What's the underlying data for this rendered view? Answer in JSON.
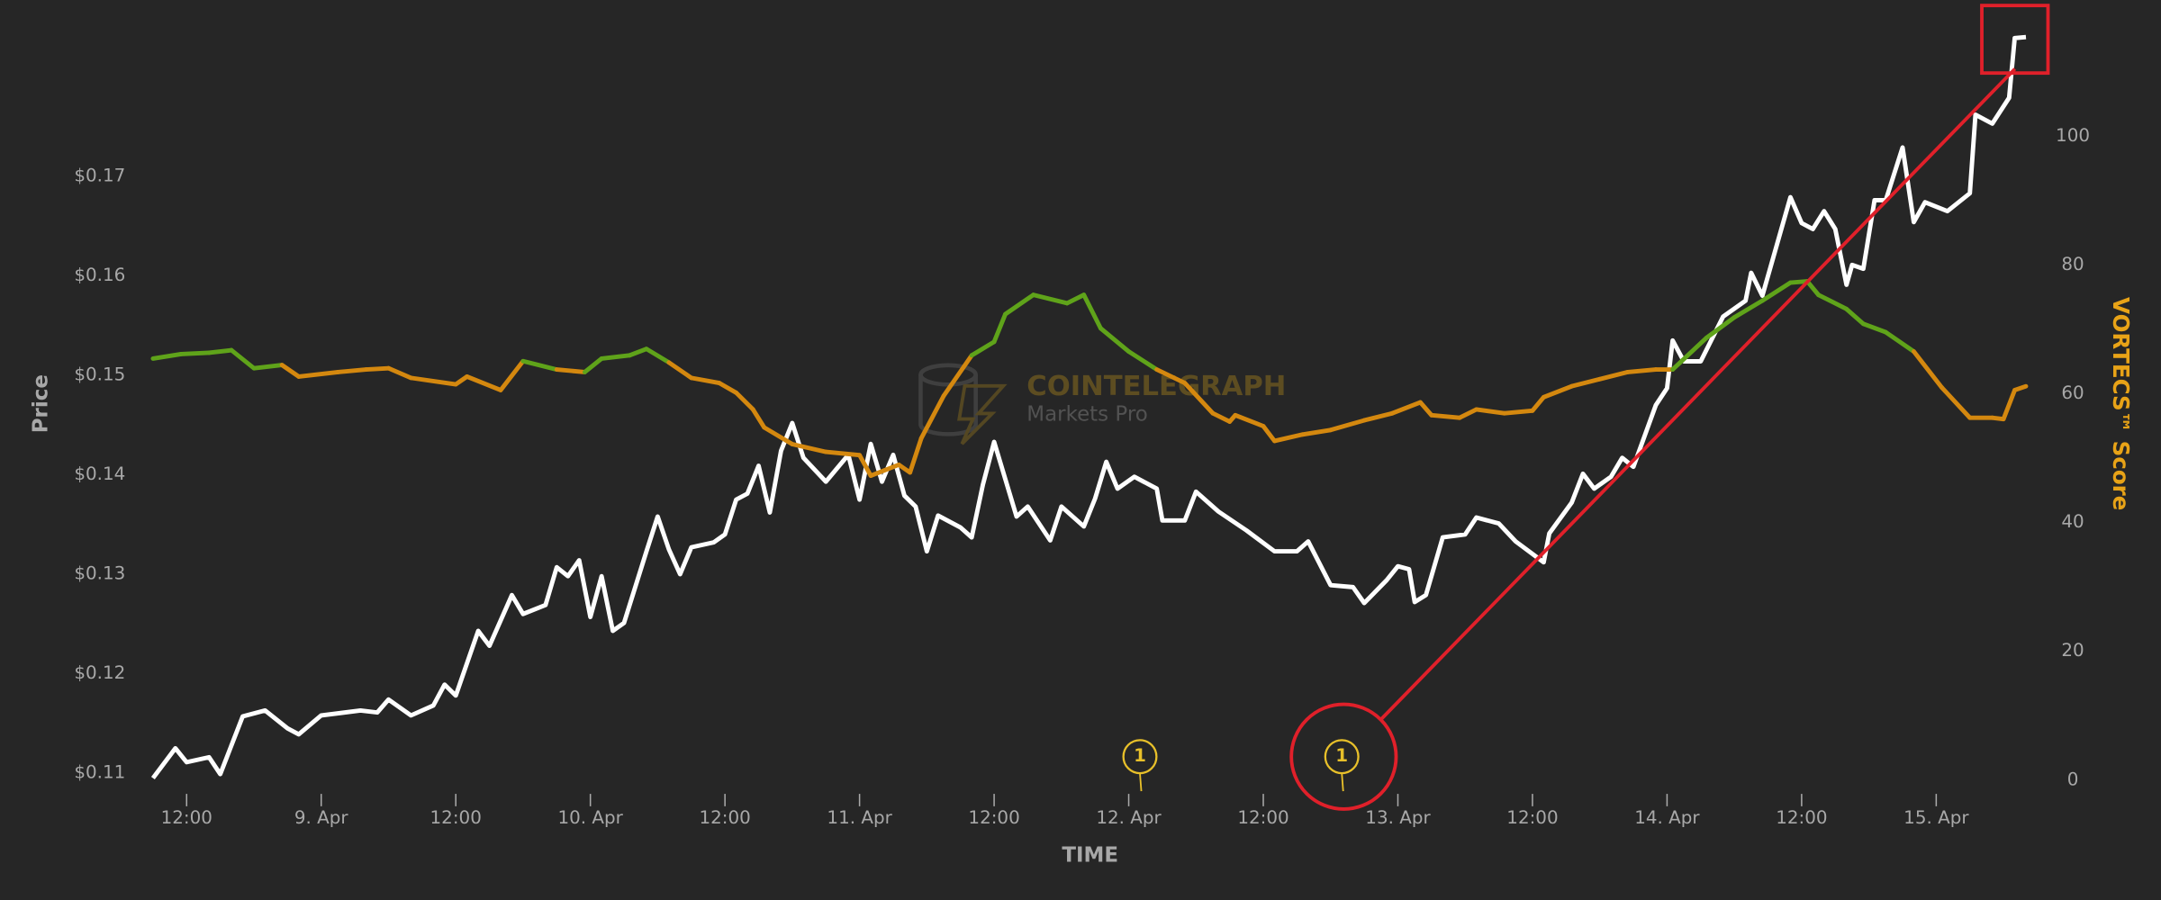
{
  "chart_data": {
    "type": "line",
    "x_label": "TIME",
    "y_label": "Price",
    "y2_label": "VORTECS™ Score",
    "xlim": [
      9,
      176
    ],
    "xticks": [
      {
        "value": 12,
        "label": "12:00"
      },
      {
        "value": 24,
        "label": "9. Apr"
      },
      {
        "value": 36,
        "label": "12:00"
      },
      {
        "value": 48,
        "label": "10. Apr"
      },
      {
        "value": 60,
        "label": "12:00"
      },
      {
        "value": 72,
        "label": "11. Apr"
      },
      {
        "value": 84,
        "label": "12:00"
      },
      {
        "value": 96,
        "label": "12. Apr"
      },
      {
        "value": 108,
        "label": "12:00"
      },
      {
        "value": 120,
        "label": "13. Apr"
      },
      {
        "value": 132,
        "label": "12:00"
      },
      {
        "value": 144,
        "label": "14. Apr"
      },
      {
        "value": 156,
        "label": "12:00"
      },
      {
        "value": 168,
        "label": "15. Apr"
      }
    ],
    "ylim": [
      0.1093,
      0.185
    ],
    "yticks": [
      {
        "value": 0.11,
        "label": "$0.11"
      },
      {
        "value": 0.12,
        "label": "$0.12"
      },
      {
        "value": 0.13,
        "label": "$0.13"
      },
      {
        "value": 0.14,
        "label": "$0.14"
      },
      {
        "value": 0.15,
        "label": "$0.15"
      },
      {
        "value": 0.16,
        "label": "$0.16"
      },
      {
        "value": 0.17,
        "label": "$0.17"
      }
    ],
    "y2lim": [
      0,
      117
    ],
    "y2ticks": [
      0,
      20,
      40,
      60,
      80,
      100
    ],
    "series": [
      {
        "color": "#ffffff",
        "x": [
          9,
          11,
          12,
          14,
          15,
          17,
          19,
          21,
          22,
          24,
          27.5,
          29,
          30,
          32,
          34,
          35,
          36,
          38,
          39,
          41,
          42,
          44,
          45,
          46,
          47,
          48,
          49,
          50,
          51,
          53,
          54,
          55,
          56,
          57,
          59,
          60,
          61,
          62,
          63,
          64,
          65,
          66,
          67,
          69,
          71,
          72,
          73,
          74,
          75,
          76,
          77,
          78,
          79,
          81,
          82,
          83,
          84,
          86,
          87,
          89,
          90,
          92,
          93,
          94,
          95,
          96.5,
          98.5,
          99,
          101,
          102,
          104,
          106.5,
          109,
          111,
          112,
          114,
          116,
          117,
          119,
          120,
          121,
          121.5,
          122.5,
          124,
          126,
          127,
          129,
          130.5,
          133,
          133.5,
          135.5,
          136.5,
          137.5,
          139,
          140,
          141,
          143,
          144,
          144.5,
          145.5,
          147,
          149,
          151,
          151.5,
          152.5,
          155,
          156,
          157,
          158,
          159,
          160,
          160.5,
          161.5,
          162.5,
          163.5,
          165,
          166,
          167,
          169,
          171,
          171.5,
          173,
          174.5,
          175,
          176
        ],
        "values": [
          0.1095,
          0.1125,
          0.1111,
          0.1116,
          0.1099,
          0.1157,
          0.1163,
          0.1145,
          0.1139,
          0.1158,
          0.1163,
          0.1161,
          0.1174,
          0.1158,
          0.1168,
          0.1189,
          0.1178,
          0.1243,
          0.1228,
          0.1279,
          0.126,
          0.1269,
          0.1307,
          0.1298,
          0.1314,
          0.1257,
          0.1298,
          0.1243,
          0.1251,
          0.1323,
          0.1358,
          0.1325,
          0.13,
          0.1327,
          0.1332,
          0.134,
          0.1375,
          0.1381,
          0.1409,
          0.1362,
          0.1424,
          0.1452,
          0.1417,
          0.1393,
          0.142,
          0.1375,
          0.1431,
          0.1393,
          0.142,
          0.1379,
          0.1368,
          0.1323,
          0.1359,
          0.1347,
          0.1337,
          0.139,
          0.1433,
          0.1358,
          0.1368,
          0.1334,
          0.1368,
          0.1348,
          0.1376,
          0.1413,
          0.1386,
          0.1398,
          0.1386,
          0.1354,
          0.1354,
          0.1383,
          0.1363,
          0.1344,
          0.1323,
          0.1323,
          0.1333,
          0.1289,
          0.1287,
          0.1271,
          0.1294,
          0.1308,
          0.1305,
          0.1272,
          0.1279,
          0.1337,
          0.134,
          0.1357,
          0.1351,
          0.1333,
          0.1312,
          0.1341,
          0.1372,
          0.1401,
          0.1386,
          0.1398,
          0.1417,
          0.1408,
          0.147,
          0.1487,
          0.1535,
          0.1514,
          0.1514,
          0.1559,
          0.1575,
          0.1603,
          0.158,
          0.1679,
          0.1653,
          0.1647,
          0.1665,
          0.1647,
          0.1591,
          0.1611,
          0.1607,
          0.1676,
          0.1676,
          0.1729,
          0.1654,
          0.1674,
          0.1665,
          0.1683,
          0.1762,
          0.1753,
          0.1779,
          0.1839,
          0.184
        ]
      },
      {
        "axis": "y2",
        "color": [
          "#d4880f",
          "#5fa31a"
        ],
        "color_threshold": 64,
        "x": [
          9,
          11.5,
          14,
          16,
          18,
          20.5,
          22,
          25.5,
          28,
          30,
          32,
          36,
          37,
          40,
          42,
          45,
          47.5,
          49,
          51.5,
          53,
          55,
          57,
          59.5,
          61,
          62.5,
          63.5,
          66,
          69,
          72,
          73,
          75.5,
          76.5,
          77.5,
          79.5,
          82,
          84,
          85,
          87.5,
          90.5,
          92,
          93.5,
          96,
          98.5,
          101,
          103.5,
          105,
          105.5,
          108,
          109,
          111.5,
          114,
          117,
          119.5,
          122,
          123,
          125.5,
          127,
          129.5,
          132,
          133,
          135.5,
          138,
          140.5,
          143,
          144.5,
          147.5,
          150,
          152.5,
          155,
          156.5,
          157.5,
          160,
          161.5,
          163.5,
          166,
          168.5,
          171,
          173,
          174,
          175,
          176
        ],
        "values": [
          65.5,
          66.2,
          66.4,
          66.8,
          64.0,
          64.5,
          62.7,
          63.4,
          63.8,
          64.0,
          62.5,
          61.5,
          62.7,
          60.6,
          65.1,
          63.8,
          63.4,
          65.5,
          66.0,
          67.0,
          64.9,
          62.5,
          61.7,
          60.2,
          57.6,
          54.8,
          52.2,
          51.0,
          50.5,
          47.3,
          49.0,
          47.8,
          53.1,
          59.7,
          66.0,
          68.1,
          72.4,
          75.4,
          74.1,
          75.4,
          70.2,
          66.6,
          63.8,
          61.7,
          57.0,
          55.7,
          56.7,
          55.0,
          52.7,
          53.7,
          54.4,
          55.9,
          57.0,
          58.7,
          56.7,
          56.3,
          57.6,
          57.0,
          57.4,
          59.5,
          61.2,
          62.3,
          63.4,
          63.8,
          63.8,
          68.7,
          71.9,
          74.5,
          77.3,
          77.5,
          75.4,
          73.2,
          70.9,
          69.6,
          66.6,
          61.0,
          56.3,
          56.3,
          56.1,
          60.6,
          61.2
        ]
      }
    ],
    "flags": [
      {
        "x": 97,
        "label": "1"
      },
      {
        "x": 115,
        "label": "1"
      }
    ],
    "watermark": {
      "title": "COINTELEGRAPH",
      "subtitle": "Markets Pro"
    }
  }
}
